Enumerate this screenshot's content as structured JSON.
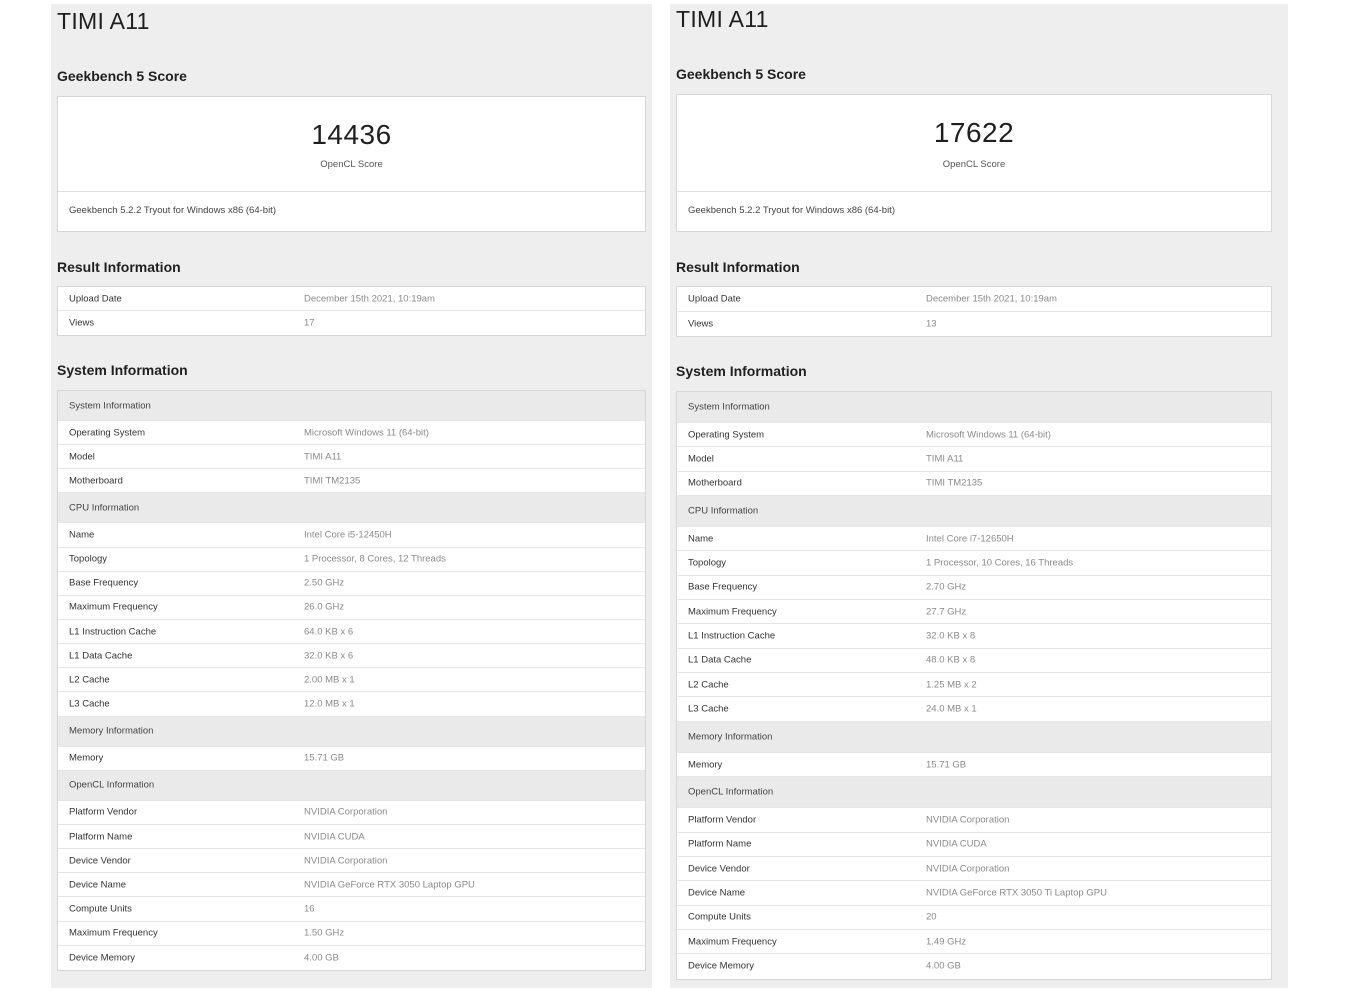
{
  "panels": [
    {
      "title": "TIMI A11",
      "score_heading": "Geekbench 5 Score",
      "score_value": "14436",
      "score_label": "OpenCL Score",
      "score_footer": "Geekbench 5.2.2 Tryout for Windows x86 (64-bit)",
      "result_heading": "Result Information",
      "result_rows": [
        {
          "label": "Upload Date",
          "value": "December 15th 2021, 10:19am"
        },
        {
          "label": "Views",
          "value": "17"
        }
      ],
      "system_heading": "System Information",
      "system_rows": [
        {
          "type": "header",
          "label": "System Information"
        },
        {
          "label": "Operating System",
          "value": "Microsoft Windows 11 (64-bit)"
        },
        {
          "label": "Model",
          "value": "TIMI A11"
        },
        {
          "label": "Motherboard",
          "value": "TIMI TM2135"
        },
        {
          "type": "header",
          "label": "CPU Information"
        },
        {
          "label": "Name",
          "value": "Intel Core i5-12450H"
        },
        {
          "label": "Topology",
          "value": "1 Processor, 8 Cores, 12 Threads"
        },
        {
          "label": "Base Frequency",
          "value": "2.50 GHz"
        },
        {
          "label": "Maximum Frequency",
          "value": "26.0 GHz"
        },
        {
          "label": "L1 Instruction Cache",
          "value": "64.0 KB x 6"
        },
        {
          "label": "L1 Data Cache",
          "value": "32.0 KB x 6"
        },
        {
          "label": "L2 Cache",
          "value": "2.00 MB x 1"
        },
        {
          "label": "L3 Cache",
          "value": "12.0 MB x 1"
        },
        {
          "type": "header",
          "label": "Memory Information"
        },
        {
          "label": "Memory",
          "value": "15.71 GB"
        },
        {
          "type": "header",
          "label": "OpenCL Information"
        },
        {
          "label": "Platform Vendor",
          "value": "NVIDIA Corporation"
        },
        {
          "label": "Platform Name",
          "value": "NVIDIA CUDA"
        },
        {
          "label": "Device Vendor",
          "value": "NVIDIA Corporation"
        },
        {
          "label": "Device Name",
          "value": "NVIDIA GeForce RTX 3050 Laptop GPU"
        },
        {
          "label": "Compute Units",
          "value": "16"
        },
        {
          "label": "Maximum Frequency",
          "value": "1.50 GHz"
        },
        {
          "label": "Device Memory",
          "value": "4.00 GB"
        }
      ]
    },
    {
      "title": "TIMI A11",
      "score_heading": "Geekbench 5 Score",
      "score_value": "17622",
      "score_label": "OpenCL Score",
      "score_footer": "Geekbench 5.2.2 Tryout for Windows x86 (64-bit)",
      "result_heading": "Result Information",
      "result_rows": [
        {
          "label": "Upload Date",
          "value": "December 15th 2021, 10:19am"
        },
        {
          "label": "Views",
          "value": "13"
        }
      ],
      "system_heading": "System Information",
      "system_rows": [
        {
          "type": "header",
          "label": "System Information"
        },
        {
          "label": "Operating System",
          "value": "Microsoft Windows 11 (64-bit)"
        },
        {
          "label": "Model",
          "value": "TIMI A11"
        },
        {
          "label": "Motherboard",
          "value": "TIMI TM2135"
        },
        {
          "type": "header",
          "label": "CPU Information"
        },
        {
          "label": "Name",
          "value": "Intel Core i7-12650H"
        },
        {
          "label": "Topology",
          "value": "1 Processor, 10 Cores, 16 Threads"
        },
        {
          "label": "Base Frequency",
          "value": "2.70 GHz"
        },
        {
          "label": "Maximum Frequency",
          "value": "27.7 GHz"
        },
        {
          "label": "L1 Instruction Cache",
          "value": "32.0 KB x 8"
        },
        {
          "label": "L1 Data Cache",
          "value": "48.0 KB x 8"
        },
        {
          "label": "L2 Cache",
          "value": "1.25 MB x 2"
        },
        {
          "label": "L3 Cache",
          "value": "24.0 MB x 1"
        },
        {
          "type": "header",
          "label": "Memory Information"
        },
        {
          "label": "Memory",
          "value": "15.71 GB"
        },
        {
          "type": "header",
          "label": "OpenCL Information"
        },
        {
          "label": "Platform Vendor",
          "value": "NVIDIA Corporation"
        },
        {
          "label": "Platform Name",
          "value": "NVIDIA CUDA"
        },
        {
          "label": "Device Vendor",
          "value": "NVIDIA Corporation"
        },
        {
          "label": "Device Name",
          "value": "NVIDIA GeForce RTX 3050 Ti Laptop GPU"
        },
        {
          "label": "Compute Units",
          "value": "20"
        },
        {
          "label": "Maximum Frequency",
          "value": "1.49 GHz"
        },
        {
          "label": "Device Memory",
          "value": "4.00 GB"
        }
      ]
    }
  ]
}
